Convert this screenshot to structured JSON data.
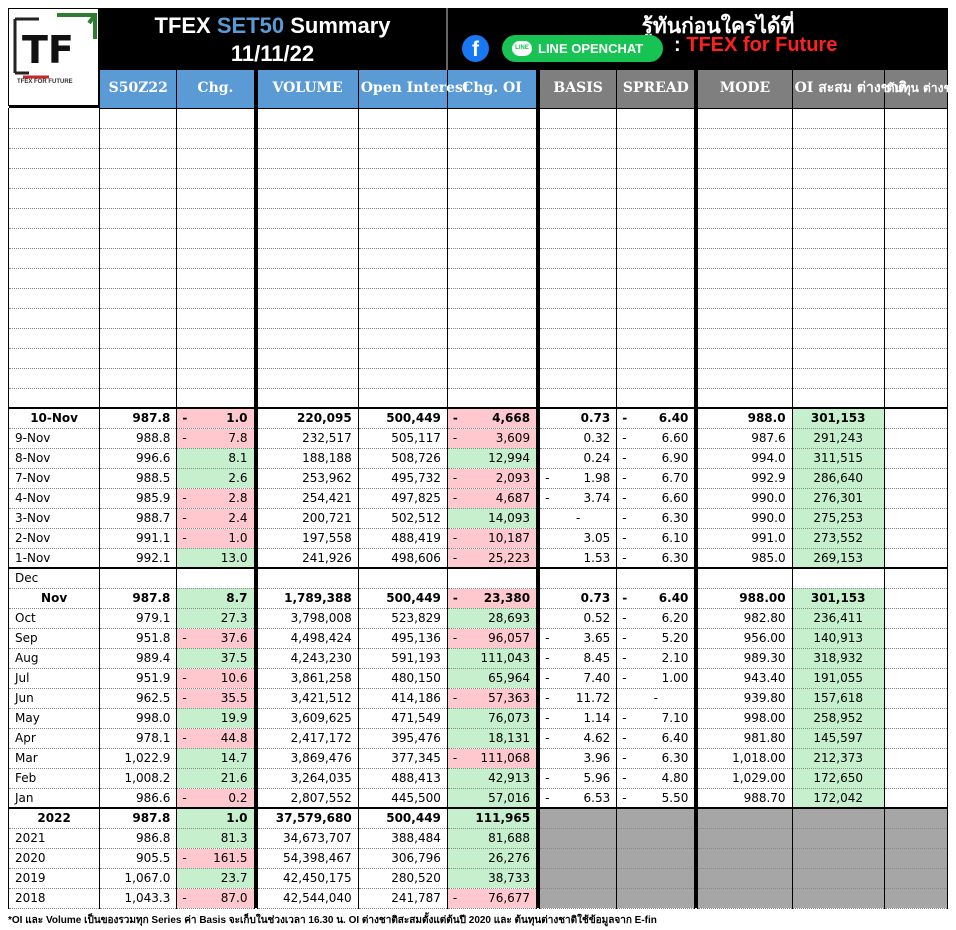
{
  "header": {
    "title_pre": "TFEX ",
    "title_set": "SET50",
    "title_post": " Summary",
    "date": "11/11/22",
    "tagline": "รู้ทันก่อนใครได้ที่",
    "fb_glyph": "f",
    "line_label": "LINE OPENCHAT",
    "line_bubble": "LINE",
    "colon": ":",
    "channel": "TFEX for Future",
    "logo_text": "TF",
    "logo_sub": "TFEX FOR FUTURE"
  },
  "columns": [
    "S50Z22",
    "Chg.",
    "VOLUME",
    "Open Interest",
    "Chg. OI",
    "BASIS",
    "SPREAD",
    "MODE",
    "OI สะสม ต่างชาติ",
    "ต้นทุน ต่างชาติ"
  ],
  "daily": [
    {
      "d": "10-Nov",
      "p": "987.8",
      "c": "1.0",
      "cn": true,
      "v": "220,095",
      "oi": "500,449",
      "coi": "4,668",
      "coin": true,
      "b": "0.73",
      "bn": false,
      "s": "6.40",
      "sn": true,
      "m": "988.0",
      "f": "301,153",
      "bold": true
    },
    {
      "d": "9-Nov",
      "p": "988.8",
      "c": "7.8",
      "cn": true,
      "v": "232,517",
      "oi": "505,117",
      "coi": "3,609",
      "coin": true,
      "b": "0.32",
      "bn": false,
      "s": "6.60",
      "sn": true,
      "m": "987.6",
      "f": "291,243"
    },
    {
      "d": "8-Nov",
      "p": "996.6",
      "c": "8.1",
      "cn": false,
      "v": "188,188",
      "oi": "508,726",
      "coi": "12,994",
      "coin": false,
      "b": "0.24",
      "bn": false,
      "s": "6.90",
      "sn": true,
      "m": "994.0",
      "f": "311,515"
    },
    {
      "d": "7-Nov",
      "p": "988.5",
      "c": "2.6",
      "cn": false,
      "v": "253,962",
      "oi": "495,732",
      "coi": "2,093",
      "coin": true,
      "b": "1.98",
      "bn": true,
      "s": "6.70",
      "sn": true,
      "m": "992.9",
      "f": "286,640"
    },
    {
      "d": "4-Nov",
      "p": "985.9",
      "c": "2.8",
      "cn": true,
      "v": "254,421",
      "oi": "497,825",
      "coi": "4,687",
      "coin": true,
      "b": "3.74",
      "bn": true,
      "s": "6.60",
      "sn": true,
      "m": "990.0",
      "f": "276,301"
    },
    {
      "d": "3-Nov",
      "p": "988.7",
      "c": "2.4",
      "cn": true,
      "v": "200,721",
      "oi": "502,512",
      "coi": "14,093",
      "coin": false,
      "b": "-",
      "bc": true,
      "bn": false,
      "s": "6.30",
      "sn": true,
      "m": "990.0",
      "f": "275,253"
    },
    {
      "d": "2-Nov",
      "p": "991.1",
      "c": "1.0",
      "cn": true,
      "v": "197,558",
      "oi": "488,419",
      "coi": "10,187",
      "coin": true,
      "b": "3.05",
      "bn": false,
      "s": "6.10",
      "sn": true,
      "m": "991.0",
      "f": "273,552"
    },
    {
      "d": "1-Nov",
      "p": "992.1",
      "c": "13.0",
      "cn": false,
      "v": "241,926",
      "oi": "498,606",
      "coi": "25,223",
      "coin": true,
      "b": "1.53",
      "bn": false,
      "s": "6.30",
      "sn": true,
      "m": "985.0",
      "f": "269,153"
    }
  ],
  "dec_label": "Dec",
  "monthly": [
    {
      "d": "Nov",
      "p": "987.8",
      "c": "8.7",
      "cn": false,
      "v": "1,789,388",
      "oi": "500,449",
      "coi": "23,380",
      "coin": true,
      "b": "0.73",
      "bn": false,
      "s": "6.40",
      "sn": true,
      "m": "988.00",
      "f": "301,153",
      "bold": true
    },
    {
      "d": "Oct",
      "p": "979.1",
      "c": "27.3",
      "cn": false,
      "v": "3,798,008",
      "oi": "523,829",
      "coi": "28,693",
      "coin": false,
      "b": "0.52",
      "bn": false,
      "s": "6.20",
      "sn": true,
      "m": "982.80",
      "f": "236,411"
    },
    {
      "d": "Sep",
      "p": "951.8",
      "c": "37.6",
      "cn": true,
      "v": "4,498,424",
      "oi": "495,136",
      "coi": "96,057",
      "coin": true,
      "b": "3.65",
      "bn": true,
      "s": "5.20",
      "sn": true,
      "m": "956.00",
      "f": "140,913"
    },
    {
      "d": "Aug",
      "p": "989.4",
      "c": "37.5",
      "cn": false,
      "v": "4,243,230",
      "oi": "591,193",
      "coi": "111,043",
      "coin": false,
      "b": "8.45",
      "bn": true,
      "s": "2.10",
      "sn": true,
      "m": "989.30",
      "f": "318,932"
    },
    {
      "d": "Jul",
      "p": "951.9",
      "c": "10.6",
      "cn": true,
      "v": "3,861,258",
      "oi": "480,150",
      "coi": "65,964",
      "coin": false,
      "b": "7.40",
      "bn": true,
      "s": "1.00",
      "sn": true,
      "m": "943.40",
      "f": "191,055"
    },
    {
      "d": "Jun",
      "p": "962.5",
      "c": "35.5",
      "cn": true,
      "v": "3,421,512",
      "oi": "414,186",
      "coi": "57,363",
      "coin": true,
      "b": "11.72",
      "bn": true,
      "s": "-",
      "sc": true,
      "sn": false,
      "m": "939.80",
      "f": "157,618"
    },
    {
      "d": "May",
      "p": "998.0",
      "c": "19.9",
      "cn": false,
      "v": "3,609,625",
      "oi": "471,549",
      "coi": "76,073",
      "coin": false,
      "b": "1.14",
      "bn": true,
      "s": "7.10",
      "sn": true,
      "m": "998.00",
      "f": "258,952"
    },
    {
      "d": "Apr",
      "p": "978.1",
      "c": "44.8",
      "cn": true,
      "v": "2,417,172",
      "oi": "395,476",
      "coi": "18,131",
      "coin": false,
      "b": "4.62",
      "bn": true,
      "s": "6.40",
      "sn": true,
      "m": "981.80",
      "f": "145,597"
    },
    {
      "d": "Mar",
      "p": "1,022.9",
      "c": "14.7",
      "cn": false,
      "v": "3,869,476",
      "oi": "377,345",
      "coi": "111,068",
      "coin": true,
      "b": "3.96",
      "bn": false,
      "s": "6.30",
      "sn": true,
      "m": "1,018.00",
      "f": "212,373"
    },
    {
      "d": "Feb",
      "p": "1,008.2",
      "c": "21.6",
      "cn": false,
      "v": "3,264,035",
      "oi": "488,413",
      "coi": "42,913",
      "coin": false,
      "b": "5.96",
      "bn": true,
      "s": "4.80",
      "sn": true,
      "m": "1,029.00",
      "f": "172,650"
    },
    {
      "d": "Jan",
      "p": "986.6",
      "c": "0.2",
      "cn": true,
      "v": "2,807,552",
      "oi": "445,500",
      "coi": "57,016",
      "coin": false,
      "b": "6.53",
      "bn": true,
      "s": "5.50",
      "sn": true,
      "m": "988.70",
      "f": "172,042"
    }
  ],
  "yearly": [
    {
      "d": "2022",
      "p": "987.8",
      "c": "1.0",
      "cn": false,
      "v": "37,579,680",
      "oi": "500,449",
      "coi": "111,965",
      "coin": false,
      "bold": true
    },
    {
      "d": "2021",
      "p": "986.8",
      "c": "81.3",
      "cn": false,
      "v": "34,673,707",
      "oi": "388,484",
      "coi": "81,688",
      "coin": false
    },
    {
      "d": "2020",
      "p": "905.5",
      "c": "161.5",
      "cn": true,
      "v": "54,398,467",
      "oi": "306,796",
      "coi": "26,276",
      "coin": false
    },
    {
      "d": "2019",
      "p": "1,067.0",
      "c": "23.7",
      "cn": false,
      "v": "42,450,175",
      "oi": "280,520",
      "coi": "38,733",
      "coin": false
    },
    {
      "d": "2018",
      "p": "1,043.3",
      "c": "87.0",
      "cn": true,
      "v": "42,544,040",
      "oi": "241,787",
      "coi": "76,677",
      "coin": true
    }
  ],
  "note": "*OI และ Volume เป็นของรวมทุก Series ค่า Basis จะเก็บในช่วงเวลา 16.30 น. OI ต่างชาติสะสมตั้งแต่ต้นปี 2020 และ ต้นทุนต่างชาติใช้ข้อมูลจาก E-fin",
  "colors": {
    "neg_bg": "#ffc7ce",
    "pos_bg": "#c6efce",
    "header_blue": "#5b9bd5",
    "header_gray": "#7f7f7f",
    "channel_red": "#ff2020",
    "line_green": "#16c353"
  }
}
